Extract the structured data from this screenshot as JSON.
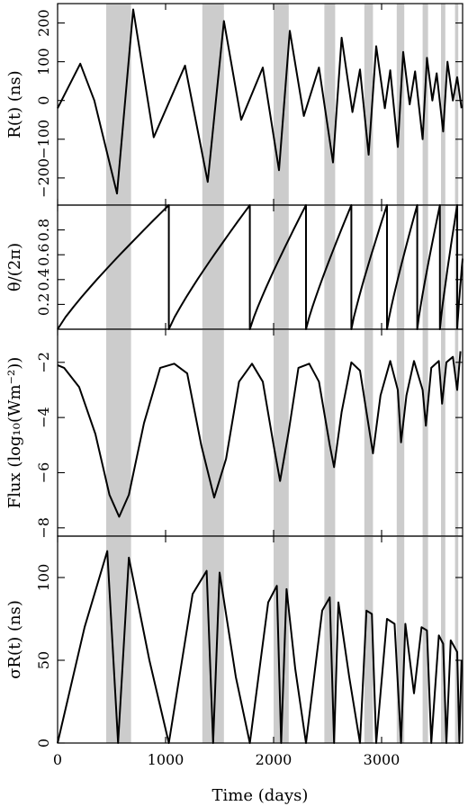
{
  "chart_data": {
    "type": "line",
    "x_label": "Time (days)",
    "x_range": [
      0,
      3750
    ],
    "x_ticks": [
      "0",
      "1000",
      "2000",
      "3000"
    ],
    "shaded_bands": [
      [
        450,
        680
      ],
      [
        1340,
        1540
      ],
      [
        2000,
        2140
      ],
      [
        2470,
        2570
      ],
      [
        2840,
        2920
      ],
      [
        3140,
        3210
      ],
      [
        3380,
        3430
      ],
      [
        3550,
        3590
      ],
      [
        3680,
        3710
      ]
    ],
    "panels": [
      {
        "id": "R",
        "ylabel": "R(t) (ns)",
        "ylim": [
          -270,
          250
        ],
        "yticks": [
          -200,
          -100,
          0,
          100,
          200
        ],
        "ytick_labels": [
          "−200",
          "−100",
          "0",
          "100",
          "200"
        ],
        "series": [
          {
            "x": [
              0,
              210,
              340,
              550,
              700,
              890,
              1180,
              1390,
              1540,
              1700,
              1900,
              2050,
              2150,
              2280,
              2420,
              2550,
              2630,
              2730,
              2800,
              2880,
              2950,
              3030,
              3080,
              3150,
              3200,
              3260,
              3310,
              3380,
              3420,
              3470,
              3510,
              3570,
              3610,
              3660,
              3700,
              3740
            ],
            "y": [
              -20,
              95,
              0,
              -240,
              235,
              -95,
              90,
              -210,
              205,
              -50,
              85,
              -180,
              180,
              -40,
              85,
              -160,
              162,
              -30,
              80,
              -140,
              140,
              -20,
              78,
              -120,
              125,
              -10,
              75,
              -100,
              110,
              0,
              70,
              -80,
              100,
              0,
              60,
              -20
            ]
          }
        ]
      },
      {
        "id": "theta",
        "ylabel": "θ/(2π)",
        "ylim": [
          0,
          1
        ],
        "yticks": [
          0.2,
          0.4,
          0.6,
          0.8
        ],
        "ytick_labels": [
          "0.2",
          "0.4",
          "0.6",
          "0.8"
        ],
        "sawtooth_resets": [
          0,
          1030,
          1780,
          2300,
          2720,
          3050,
          3330,
          3540,
          3700
        ]
      },
      {
        "id": "flux",
        "ylabel": "Flux (log₁₀(Wm⁻²))",
        "ylim": [
          -8.3,
          -0.8
        ],
        "yticks": [
          -8,
          -6,
          -4,
          -2
        ],
        "ytick_labels": [
          "−8",
          "−6",
          "−4",
          "−2"
        ],
        "series": [
          {
            "x": [
              0,
              60,
              200,
              350,
              480,
              570,
              660,
              800,
              950,
              1080,
              1200,
              1330,
              1450,
              1560,
              1680,
              1800,
              1900,
              2000,
              2060,
              2140,
              2230,
              2330,
              2420,
              2520,
              2560,
              2630,
              2720,
              2800,
              2880,
              2920,
              2990,
              3080,
              3150,
              3180,
              3230,
              3300,
              3380,
              3410,
              3460,
              3530,
              3560,
              3600,
              3660,
              3700,
              3730
            ],
            "y": [
              -2.1,
              -2.2,
              -2.9,
              -4.6,
              -6.8,
              -7.6,
              -6.8,
              -4.2,
              -2.2,
              -2.05,
              -2.4,
              -5.0,
              -6.9,
              -5.5,
              -2.7,
              -2.05,
              -2.7,
              -5.0,
              -6.3,
              -4.5,
              -2.2,
              -2.05,
              -2.7,
              -5.0,
              -5.8,
              -3.8,
              -2.0,
              -2.3,
              -4.3,
              -5.3,
              -3.2,
              -1.95,
              -3.0,
              -4.9,
              -3.2,
              -1.95,
              -3.0,
              -4.3,
              -2.2,
              -1.95,
              -3.5,
              -2.0,
              -1.8,
              -3.0,
              -1.6
            ]
          }
        ]
      },
      {
        "id": "sigma",
        "ylabel": "σR(t) (ns)",
        "ylim": [
          0,
          125
        ],
        "yticks": [
          0,
          50,
          100
        ],
        "ytick_labels": [
          "0",
          "50",
          "100"
        ],
        "series": [
          {
            "x": [
              0,
              250,
              460,
              560,
              660,
              850,
              1030,
              1250,
              1380,
              1440,
              1500,
              1650,
              1780,
              1950,
              2030,
              2070,
              2120,
              2200,
              2300,
              2450,
              2520,
              2560,
              2600,
              2700,
              2800,
              2860,
              2910,
              2950,
              3050,
              3120,
              3180,
              3220,
              3300,
              3370,
              3420,
              3460,
              3530,
              3570,
              3600,
              3640,
              3700,
              3720,
              3740
            ],
            "y": [
              0,
              70,
              116,
              0,
              112,
              50,
              0,
              90,
              104,
              0,
              103,
              40,
              0,
              85,
              95,
              0,
              93,
              45,
              0,
              80,
              88,
              0,
              85,
              40,
              0,
              80,
              78,
              0,
              75,
              72,
              0,
              72,
              30,
              70,
              68,
              0,
              65,
              60,
              0,
              62,
              55,
              0,
              50
            ]
          }
        ]
      }
    ]
  }
}
